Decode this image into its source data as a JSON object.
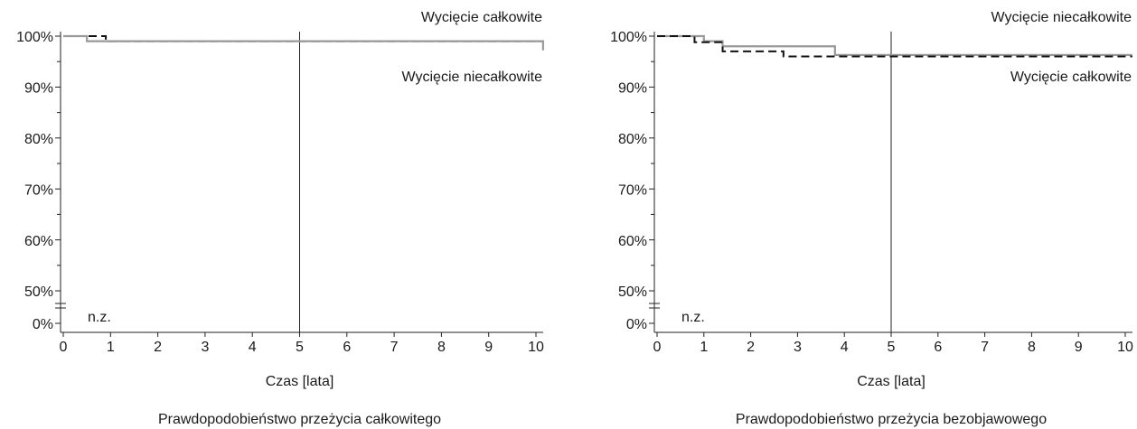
{
  "chart_data": [
    {
      "type": "step",
      "title": "Prawdopodobieństwo przeżycia całkowitego",
      "xlabel": "Czas [lata]",
      "xlim": [
        0,
        10
      ],
      "xticks": [
        0,
        1,
        2,
        3,
        4,
        5,
        6,
        7,
        8,
        9,
        10
      ],
      "ylim": [
        50,
        100
      ],
      "yticks": [
        {
          "value": 50,
          "label": "50%"
        },
        {
          "value": 60,
          "label": "60%"
        },
        {
          "value": 70,
          "label": "70%"
        },
        {
          "value": 80,
          "label": "80%"
        },
        {
          "value": 90,
          "label": "90%"
        },
        {
          "value": 100,
          "label": "100%"
        }
      ],
      "yminorticks": [
        55,
        65,
        75,
        85,
        95
      ],
      "y_break_tick": {
        "value": 0,
        "label": "0%"
      },
      "annotation": "n.z.",
      "vline": 5,
      "series": [
        {
          "name": "Wycięcie całkowite",
          "color": "#111111",
          "dashed": true,
          "x": [
            0,
            0.9,
            10.15
          ],
          "values": [
            100,
            99,
            99
          ]
        },
        {
          "name": "Wycięcie niecałkowite",
          "color": "#999999",
          "dashed": false,
          "x": [
            0,
            0.5,
            3.75,
            10.15
          ],
          "values": [
            100,
            99,
            99,
            97.2
          ]
        }
      ]
    },
    {
      "type": "step",
      "title": "Prawdopodobieństwo przeżycia bezobjawowego",
      "xlabel": "Czas [lata]",
      "xlim": [
        0,
        10
      ],
      "xticks": [
        0,
        1,
        2,
        3,
        4,
        5,
        6,
        7,
        8,
        9,
        10
      ],
      "ylim": [
        50,
        100
      ],
      "yticks": [
        {
          "value": 50,
          "label": "50%"
        },
        {
          "value": 60,
          "label": "60%"
        },
        {
          "value": 70,
          "label": "70%"
        },
        {
          "value": 80,
          "label": "80%"
        },
        {
          "value": 90,
          "label": "90%"
        },
        {
          "value": 100,
          "label": "100%"
        }
      ],
      "yminorticks": [
        55,
        65,
        75,
        85,
        95
      ],
      "y_break_tick": {
        "value": 0,
        "label": "0%"
      },
      "annotation": "n.z.",
      "vline": 5,
      "series": [
        {
          "name": "Wycięcie niecałkowite",
          "color": "#999999",
          "dashed": false,
          "x": [
            0,
            1.0,
            1.4,
            3.8,
            10.15
          ],
          "values": [
            100,
            99,
            98,
            96.3,
            96.3
          ]
        },
        {
          "name": "Wycięcie całkowite",
          "color": "#111111",
          "dashed": true,
          "x": [
            0,
            0.8,
            1.4,
            2.7,
            10.15
          ],
          "values": [
            100,
            98.8,
            97,
            96,
            96
          ]
        }
      ]
    }
  ]
}
